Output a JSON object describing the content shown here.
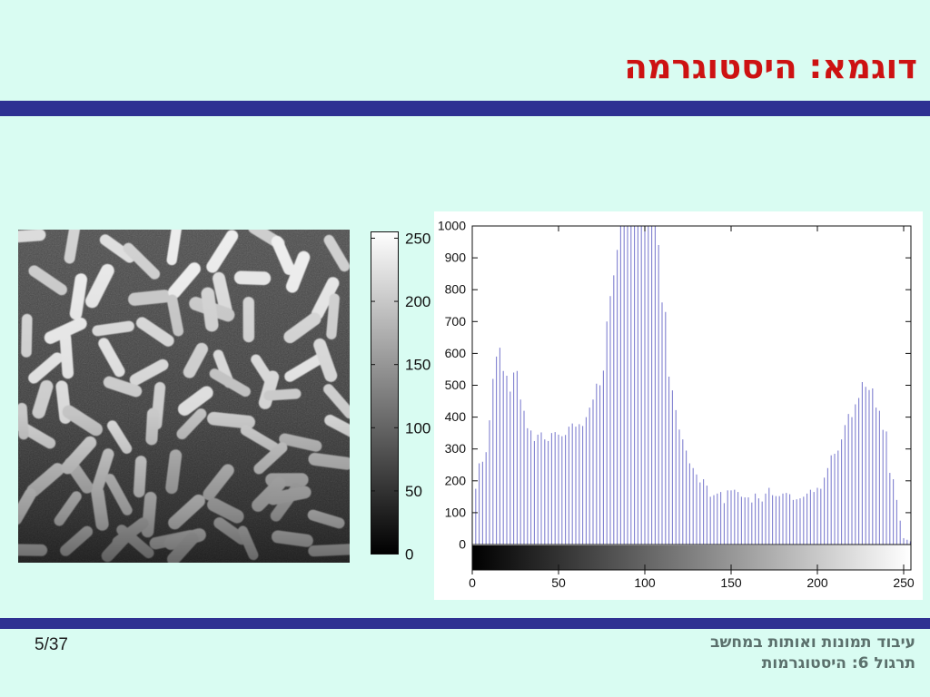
{
  "slide": {
    "title": "דוגמא: היסטוגרמה",
    "page_number": "5/37",
    "footer": {
      "line1": "עיבוד תמונות ואותות במחשב",
      "line2": "תרגול 6: היסטוגרמות"
    }
  },
  "colors": {
    "background": "#d9fcf2",
    "divider_bar": "#2e3192",
    "title_text": "#cd1212",
    "footer_text": "#5b706c",
    "axis": "#111111",
    "histogram_stem": "#8080d0"
  },
  "rice_image": {
    "alt": "rice-grains-grayscale-image"
  },
  "colorbar": {
    "tick_values": [
      250,
      200,
      150,
      100,
      50,
      0
    ],
    "tick_labels": [
      "250",
      "200",
      "150",
      "100",
      "50",
      "0"
    ],
    "gradient": [
      "#ffffff",
      "#000000"
    ]
  },
  "chart_data": {
    "type": "bar",
    "title": "",
    "xlabel": "",
    "ylabel": "",
    "x_ticks": [
      0,
      50,
      100,
      150,
      200,
      250
    ],
    "y_ticks": [
      0,
      100,
      200,
      300,
      400,
      500,
      600,
      700,
      800,
      900,
      1000
    ],
    "xlim": [
      0,
      255
    ],
    "ylim": [
      0,
      1000
    ],
    "grid": false,
    "legend": "none",
    "gray_start": 0,
    "gray_step": 2,
    "values": [
      105,
      175,
      255,
      260,
      290,
      390,
      520,
      590,
      618,
      545,
      530,
      480,
      540,
      545,
      455,
      420,
      365,
      358,
      325,
      345,
      352,
      330,
      325,
      350,
      353,
      345,
      340,
      344,
      370,
      380,
      370,
      378,
      372,
      400,
      430,
      455,
      505,
      500,
      546,
      700,
      780,
      845,
      925,
      1000,
      1000,
      1000,
      1000,
      1000,
      1000,
      1000,
      1000,
      1000,
      1000,
      1000,
      940,
      760,
      730,
      527,
      484,
      422,
      361,
      330,
      295,
      255,
      240,
      220,
      195,
      205,
      185,
      150,
      155,
      160,
      165,
      130,
      170,
      170,
      172,
      165,
      150,
      148,
      148,
      132,
      160,
      145,
      135,
      160,
      178,
      155,
      152,
      152,
      160,
      162,
      158,
      140,
      142,
      145,
      150,
      160,
      172,
      165,
      178,
      175,
      210,
      240,
      280,
      285,
      295,
      330,
      375,
      410,
      400,
      440,
      460,
      510,
      495,
      485,
      490,
      430,
      420,
      360,
      355,
      225,
      205,
      140,
      75,
      20,
      15,
      10
    ],
    "note": "central bins (gray 86-106) exceed axis limit and are clipped at 1000",
    "bottom_strip": "horizontal grayscale gradient 0 (black) to 255 (white) under x-axis"
  }
}
